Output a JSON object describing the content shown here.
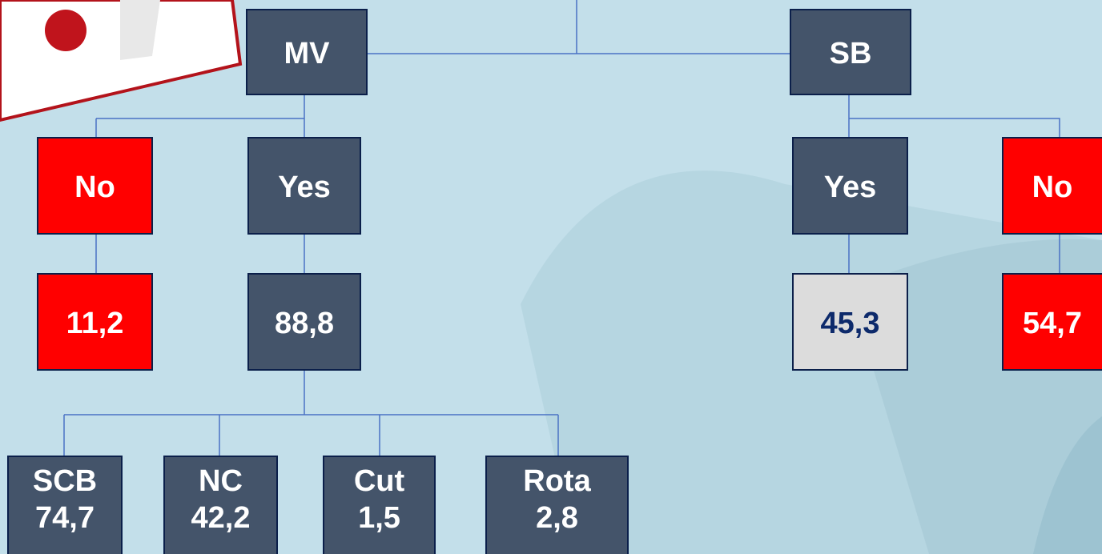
{
  "nodes": [
    {
      "lines": [
        "MV"
      ]
    },
    {
      "lines": [
        "SB"
      ]
    },
    {
      "lines": [
        "No"
      ]
    },
    {
      "lines": [
        "Yes"
      ]
    },
    {
      "lines": [
        "11,2"
      ]
    },
    {
      "lines": [
        "88,8"
      ]
    },
    {
      "lines": [
        "Yes"
      ]
    },
    {
      "lines": [
        "No"
      ]
    },
    {
      "lines": [
        "45,3"
      ]
    },
    {
      "lines": [
        "54,7"
      ]
    },
    {
      "lines": [
        "SCB",
        "74,7"
      ]
    },
    {
      "lines": [
        "NC",
        "42,2"
      ]
    },
    {
      "lines": [
        "Cut",
        "1,5"
      ]
    },
    {
      "lines": [
        "Rota",
        "2,8"
      ]
    }
  ]
}
